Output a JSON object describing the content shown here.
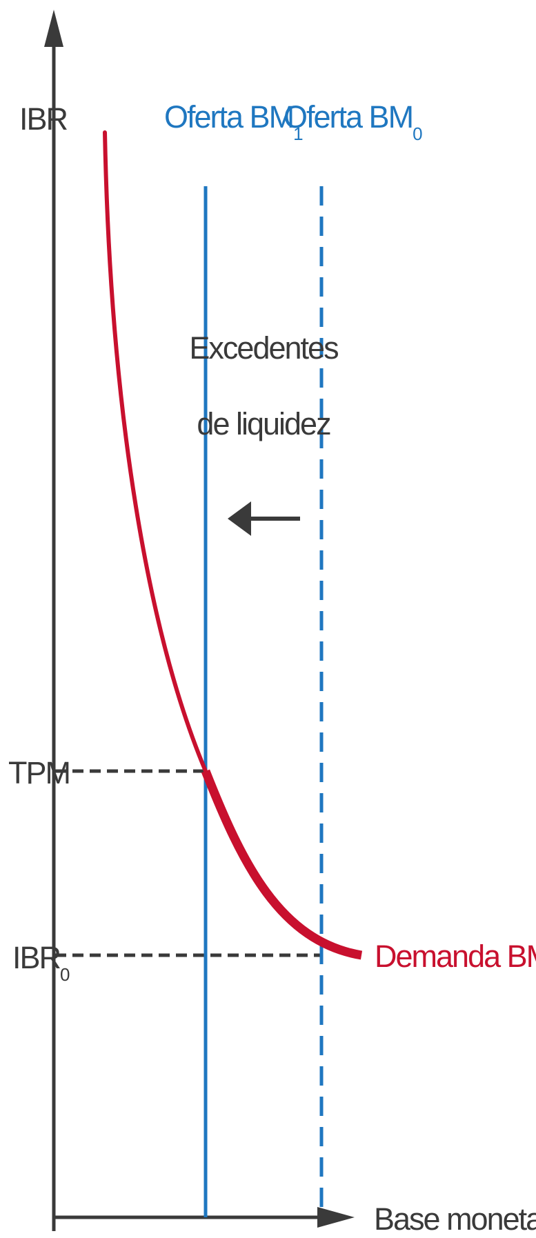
{
  "axes": {
    "y_label": "IBR",
    "x_label": "Base monetaria (BM)"
  },
  "supply_new": {
    "label": "Oferta BM",
    "subscript": "1",
    "color": "#1f77c0"
  },
  "supply_old": {
    "label": "Oferta BM",
    "subscript": "0",
    "color": "#1f77c0"
  },
  "demand": {
    "label": "Demanda BM",
    "color": "#c8102e"
  },
  "levels": {
    "tpm": "TPM",
    "ibr0_main": "IBR",
    "ibr0_sub": "0"
  },
  "annotation": {
    "line1": "Excedentes",
    "line2": "de liquidez"
  },
  "colors": {
    "axis": "#3a3a3a",
    "text": "#3a3a3a"
  }
}
